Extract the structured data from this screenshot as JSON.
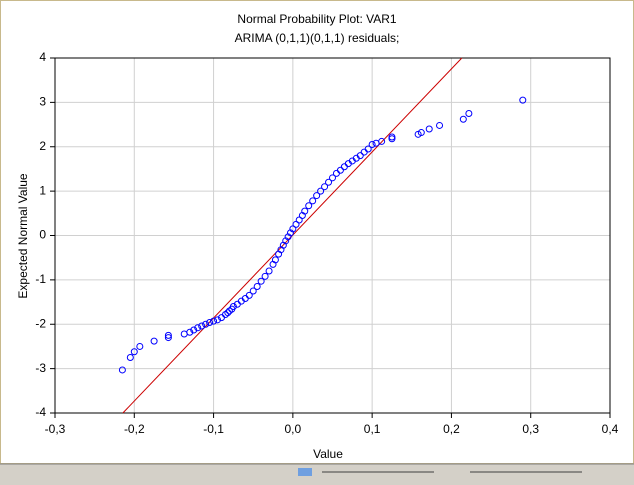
{
  "chart_data": {
    "type": "scatter",
    "title": "Normal Probability Plot: VAR1",
    "subtitle": "ARIMA (0,1,1)(0,1,1) residuals;",
    "x_label": "Value",
    "y_label": "Expected Normal Value",
    "xlim": [
      -0.3,
      0.4
    ],
    "ylim": [
      -4,
      4
    ],
    "xticks": [
      {
        "value": -0.3,
        "label": "-0,3"
      },
      {
        "value": -0.2,
        "label": "-0,2"
      },
      {
        "value": -0.1,
        "label": "-0,1"
      },
      {
        "value": 0,
        "label": "0,0"
      },
      {
        "value": 0.1,
        "label": "0,1"
      },
      {
        "value": 0.2,
        "label": "0,2"
      },
      {
        "value": 0.3,
        "label": "0,3"
      },
      {
        "value": 0.4,
        "label": "0,4"
      }
    ],
    "yticks": [
      4,
      3,
      2,
      1,
      0,
      -1,
      -2,
      -3,
      -4
    ],
    "grid": true,
    "color": "#0000ff",
    "x": [
      -0.215,
      -0.205,
      -0.2,
      -0.193,
      -0.175,
      -0.157,
      -0.157,
      -0.137,
      -0.13,
      -0.125,
      -0.12,
      -0.115,
      -0.11,
      -0.105,
      -0.1,
      -0.095,
      -0.09,
      -0.085,
      -0.082,
      -0.08,
      -0.077,
      -0.075,
      -0.07,
      -0.065,
      -0.06,
      -0.055,
      -0.05,
      -0.045,
      -0.04,
      -0.035,
      -0.03,
      -0.025,
      -0.022,
      -0.018,
      -0.015,
      -0.012,
      -0.009,
      -0.006,
      -0.003,
      0.0,
      0.004,
      0.008,
      0.012,
      0.015,
      0.02,
      0.025,
      0.03,
      0.035,
      0.04,
      0.045,
      0.05,
      0.055,
      0.06,
      0.065,
      0.07,
      0.075,
      0.08,
      0.085,
      0.09,
      0.095,
      0.1,
      0.105,
      0.112,
      0.125,
      0.125,
      0.158,
      0.162,
      0.172,
      0.185,
      0.215,
      0.222,
      0.29
    ],
    "values": [
      -3.03,
      -2.75,
      -2.62,
      -2.5,
      -2.38,
      -2.3,
      -2.25,
      -2.22,
      -2.18,
      -2.13,
      -2.08,
      -2.04,
      -2.0,
      -1.96,
      -1.93,
      -1.9,
      -1.85,
      -1.78,
      -1.74,
      -1.7,
      -1.66,
      -1.6,
      -1.55,
      -1.48,
      -1.42,
      -1.35,
      -1.25,
      -1.15,
      -1.03,
      -0.92,
      -0.8,
      -0.65,
      -0.55,
      -0.42,
      -0.32,
      -0.22,
      -0.12,
      -0.03,
      0.06,
      0.15,
      0.25,
      0.35,
      0.45,
      0.55,
      0.67,
      0.78,
      0.9,
      1.0,
      1.1,
      1.2,
      1.3,
      1.4,
      1.47,
      1.55,
      1.62,
      1.68,
      1.74,
      1.8,
      1.88,
      1.95,
      2.05,
      2.08,
      2.12,
      2.18,
      2.22,
      2.28,
      2.32,
      2.4,
      2.48,
      2.62,
      2.75,
      3.05
    ],
    "reference_line": {
      "x": [
        -0.2144,
        0.2131
      ],
      "y": [
        -4,
        4
      ],
      "color": "#cc0000"
    }
  }
}
